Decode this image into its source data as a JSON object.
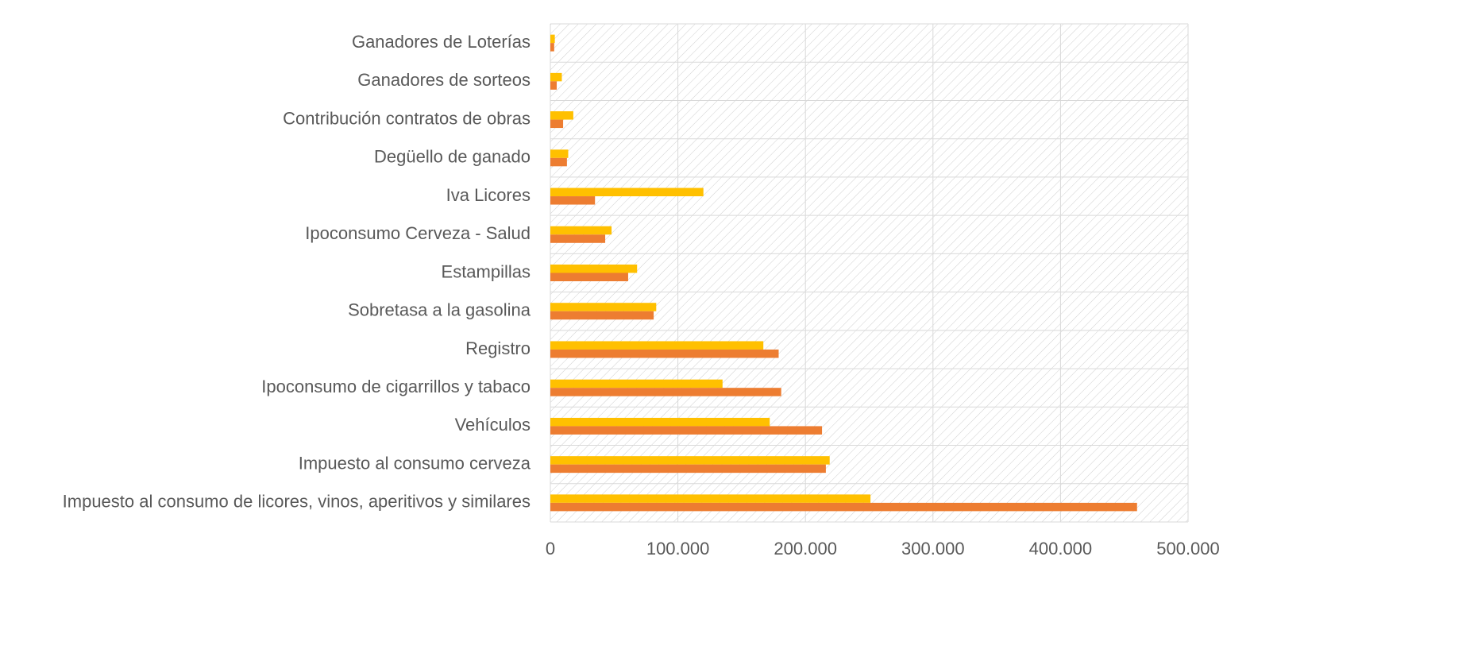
{
  "chart_data": {
    "type": "hbar",
    "categories": [
      "Ganadores de Loterías",
      "Ganadores de sorteos",
      "Contribución contratos de obras",
      "Degüello de ganado",
      "Iva Licores",
      "Ipoconsumo Cerveza - Salud",
      "Estampillas",
      "Sobretasa a la gasolina",
      "Registro",
      "Ipoconsumo de cigarrillos y tabaco",
      "Vehículos",
      "Impuesto al consumo cerveza",
      "Impuesto al consumo de licores, vinos, aperitivos y similares"
    ],
    "series": [
      {
        "color": "#FFC000",
        "values": [
          3500,
          9000,
          18000,
          14000,
          120000,
          48000,
          68000,
          83000,
          167000,
          135000,
          172000,
          219000,
          251000
        ]
      },
      {
        "color": "#ED7D31",
        "values": [
          3000,
          5000,
          10000,
          13000,
          35000,
          43000,
          61000,
          81000,
          179000,
          181000,
          213000,
          216000,
          460000
        ]
      }
    ],
    "xlim": [
      0,
      500000
    ],
    "xticks": [
      0,
      {
        "value": 100000,
        "label": "100.000"
      },
      {
        "value": 200000,
        "label": "200.000"
      },
      {
        "value": 300000,
        "label": "300.000"
      },
      {
        "value": 400000,
        "label": "400.000"
      },
      {
        "value": 500000,
        "label": "500.000"
      }
    ],
    "grid": true
  }
}
